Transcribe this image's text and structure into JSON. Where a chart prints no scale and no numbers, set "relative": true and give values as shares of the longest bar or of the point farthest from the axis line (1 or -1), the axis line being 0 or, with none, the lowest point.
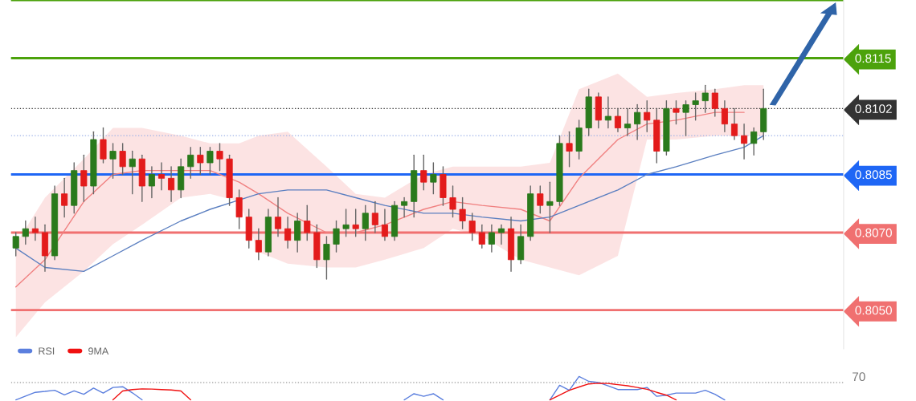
{
  "chart_data": [
    {
      "type": "candlestick",
      "categories": [
        null,
        null,
        null,
        null,
        null,
        null,
        null,
        null,
        null,
        null,
        null,
        null,
        null,
        null,
        null,
        null,
        null,
        null,
        null,
        null,
        null,
        null,
        null,
        null,
        null,
        null,
        null,
        null,
        null,
        null,
        null,
        null,
        null,
        null,
        null,
        null,
        null,
        null,
        null,
        null,
        null,
        null,
        null,
        null,
        null,
        null,
        null,
        null,
        null,
        null,
        null,
        null,
        null,
        null,
        null,
        null,
        null,
        null,
        null,
        null,
        null,
        null,
        null,
        null,
        null,
        null,
        null,
        null,
        null,
        null,
        null,
        null,
        null,
        null,
        null,
        null,
        null,
        null
      ],
      "ohlc": [
        [
          0.8066,
          0.807,
          0.8064,
          0.8069
        ],
        [
          0.8069,
          0.8073,
          0.8067,
          0.8071
        ],
        [
          0.8071,
          0.8074,
          0.8068,
          0.807
        ],
        [
          0.807,
          0.8072,
          0.806,
          0.8064
        ],
        [
          0.8064,
          0.8082,
          0.8063,
          0.808
        ],
        [
          0.808,
          0.8084,
          0.8074,
          0.8077
        ],
        [
          0.8077,
          0.8088,
          0.8075,
          0.8086
        ],
        [
          0.8086,
          0.809,
          0.8078,
          0.8082
        ],
        [
          0.8082,
          0.8096,
          0.808,
          0.8094
        ],
        [
          0.8094,
          0.8097,
          0.8088,
          0.8089
        ],
        [
          0.8089,
          0.8093,
          0.8084,
          0.8091
        ],
        [
          0.8091,
          0.8093,
          0.8085,
          0.8087
        ],
        [
          0.8087,
          0.8091,
          0.808,
          0.8089
        ],
        [
          0.8089,
          0.809,
          0.8078,
          0.8082
        ],
        [
          0.8082,
          0.8087,
          0.8079,
          0.8085
        ],
        [
          0.8085,
          0.8088,
          0.8081,
          0.8084
        ],
        [
          0.8084,
          0.8087,
          0.8078,
          0.8081
        ],
        [
          0.8081,
          0.8089,
          0.8079,
          0.8087
        ],
        [
          0.8087,
          0.8092,
          0.8084,
          0.809
        ],
        [
          0.809,
          0.8092,
          0.8085,
          0.8088
        ],
        [
          0.8088,
          0.8092,
          0.8085,
          0.8091
        ],
        [
          0.8091,
          0.8093,
          0.8086,
          0.8089
        ],
        [
          0.8089,
          0.809,
          0.8077,
          0.8079
        ],
        [
          0.8079,
          0.8081,
          0.8071,
          0.8074
        ],
        [
          0.8074,
          0.8076,
          0.8066,
          0.8068
        ],
        [
          0.8068,
          0.8071,
          0.8063,
          0.8065
        ],
        [
          0.8065,
          0.8076,
          0.8064,
          0.8074
        ],
        [
          0.8074,
          0.8079,
          0.8069,
          0.8071
        ],
        [
          0.8071,
          0.8074,
          0.8066,
          0.8068
        ],
        [
          0.8068,
          0.8075,
          0.8065,
          0.8073
        ],
        [
          0.8073,
          0.8077,
          0.8068,
          0.807
        ],
        [
          0.807,
          0.8072,
          0.8061,
          0.8063
        ],
        [
          0.8063,
          0.8069,
          0.8058,
          0.8067
        ],
        [
          0.8067,
          0.8073,
          0.8065,
          0.8071
        ],
        [
          0.8071,
          0.8076,
          0.8069,
          0.8072
        ],
        [
          0.8072,
          0.8076,
          0.8069,
          0.8071
        ],
        [
          0.8071,
          0.8077,
          0.8068,
          0.8075
        ],
        [
          0.8075,
          0.8078,
          0.807,
          0.8072
        ],
        [
          0.8072,
          0.8076,
          0.8068,
          0.8069
        ],
        [
          0.8069,
          0.8078,
          0.8068,
          0.8077
        ],
        [
          0.8077,
          0.8079,
          0.8074,
          0.8078
        ],
        [
          0.8078,
          0.809,
          0.8074,
          0.8086
        ],
        [
          0.8086,
          0.809,
          0.8081,
          0.8083
        ],
        [
          0.8083,
          0.8088,
          0.808,
          0.8085
        ],
        [
          0.8085,
          0.8087,
          0.8077,
          0.8079
        ],
        [
          0.8079,
          0.8082,
          0.8074,
          0.8076
        ],
        [
          0.8076,
          0.8079,
          0.8071,
          0.8073
        ],
        [
          0.8073,
          0.8075,
          0.8068,
          0.807
        ],
        [
          0.807,
          0.8072,
          0.8066,
          0.8067
        ],
        [
          0.8067,
          0.8072,
          0.8065,
          0.807
        ],
        [
          0.807,
          0.8072,
          0.8067,
          0.8071
        ],
        [
          0.8071,
          0.8074,
          0.806,
          0.8063
        ],
        [
          0.8063,
          0.8072,
          0.8062,
          0.8069
        ],
        [
          0.8069,
          0.8082,
          0.8068,
          0.808
        ],
        [
          0.808,
          0.8082,
          0.8075,
          0.8077
        ],
        [
          0.8077,
          0.8083,
          0.807,
          0.8078
        ],
        [
          0.8078,
          0.8095,
          0.8077,
          0.8093
        ],
        [
          0.8093,
          0.8096,
          0.8087,
          0.8091
        ],
        [
          0.8091,
          0.8099,
          0.8089,
          0.8097
        ],
        [
          0.8097,
          0.8107,
          0.8095,
          0.8105
        ],
        [
          0.8105,
          0.8106,
          0.8097,
          0.8099
        ],
        [
          0.8099,
          0.8105,
          0.8097,
          0.81
        ],
        [
          0.81,
          0.8102,
          0.8096,
          0.8097
        ],
        [
          0.8097,
          0.8102,
          0.8095,
          0.8098
        ],
        [
          0.8098,
          0.8103,
          0.8094,
          0.8101
        ],
        [
          0.8101,
          0.8104,
          0.8096,
          0.8099
        ],
        [
          0.8099,
          0.8102,
          0.8088,
          0.8091
        ],
        [
          0.8091,
          0.8104,
          0.809,
          0.8102
        ],
        [
          0.8102,
          0.8104,
          0.8098,
          0.8101
        ],
        [
          0.8101,
          0.8104,
          0.8095,
          0.8103
        ],
        [
          0.8103,
          0.8106,
          0.8099,
          0.8104
        ],
        [
          0.8104,
          0.8108,
          0.8101,
          0.8106
        ],
        [
          0.8106,
          0.8107,
          0.81,
          0.8102
        ],
        [
          0.8102,
          0.8104,
          0.8096,
          0.8098
        ],
        [
          0.8098,
          0.8102,
          0.8094,
          0.8095
        ],
        [
          0.8095,
          0.8098,
          0.8089,
          0.8093
        ],
        [
          0.8093,
          0.8097,
          0.809,
          0.8096
        ],
        [
          0.8096,
          0.8107,
          0.8094,
          0.8102
        ]
      ],
      "colors": [
        "#2a7a1c",
        "#2a7a1c",
        "#e31b1b",
        "#e31b1b",
        "#2a7a1c",
        "#e31b1b",
        "#2a7a1c",
        "#e31b1b",
        "#2a7a1c",
        "#e31b1b",
        "#2a7a1c",
        "#e31b1b",
        "#2a7a1c",
        "#e31b1b",
        "#2a7a1c",
        "#e31b1b",
        "#e31b1b",
        "#2a7a1c",
        "#2a7a1c",
        "#e31b1b",
        "#2a7a1c",
        "#e31b1b",
        "#e31b1b",
        "#e31b1b",
        "#e31b1b",
        "#e31b1b",
        "#2a7a1c",
        "#e31b1b",
        "#e31b1b",
        "#2a7a1c",
        "#e31b1b",
        "#e31b1b",
        "#2a7a1c",
        "#2a7a1c",
        "#2a7a1c",
        "#e31b1b",
        "#2a7a1c",
        "#e31b1b",
        "#e31b1b",
        "#2a7a1c",
        "#2a7a1c",
        "#2a7a1c",
        "#e31b1b",
        "#2a7a1c",
        "#e31b1b",
        "#e31b1b",
        "#e31b1b",
        "#e31b1b",
        "#e31b1b",
        "#2a7a1c",
        "#2a7a1c",
        "#e31b1b",
        "#2a7a1c",
        "#2a7a1c",
        "#e31b1b",
        "#2a7a1c",
        "#2a7a1c",
        "#e31b1b",
        "#2a7a1c",
        "#2a7a1c",
        "#e31b1b",
        "#2a7a1c",
        "#e31b1b",
        "#2a7a1c",
        "#2a7a1c",
        "#e31b1b",
        "#e31b1b",
        "#2a7a1c",
        "#e31b1b",
        "#2a7a1c",
        "#2a7a1c",
        "#2a7a1c",
        "#e31b1b",
        "#e31b1b",
        "#e31b1b",
        "#e31b1b",
        "#2a7a1c",
        "#2a7a1c"
      ],
      "series": [
        {
          "type": "line",
          "color": "#f08080",
          "values": [
            0.8056,
            null,
            null,
            0.8063,
            null,
            null,
            null,
            0.8078,
            null,
            null,
            0.8085,
            null,
            null,
            0.8086,
            null,
            null,
            null,
            null,
            null,
            null,
            0.8086,
            null,
            null,
            0.8083,
            null,
            0.808,
            null,
            null,
            0.8075,
            null,
            null,
            null,
            0.807,
            null,
            null,
            0.807,
            null,
            null,
            0.8072,
            null,
            null,
            null,
            0.8076,
            null,
            null,
            0.8078,
            null,
            null,
            0.8077,
            null,
            null,
            null,
            0.8076,
            null,
            null,
            0.8073,
            null,
            null,
            0.8084,
            null,
            null,
            null,
            0.8094,
            null,
            null,
            0.8098,
            null,
            null,
            0.8099,
            null,
            null,
            null,
            0.8101,
            null,
            null,
            0.8101,
            null,
            null
          ],
          "upper": [
            0.8067,
            null,
            null,
            0.8079,
            null,
            null,
            null,
            0.8089,
            null,
            null,
            0.8097,
            null,
            null,
            0.8097,
            null,
            null,
            null,
            0.8095,
            null,
            null,
            0.8093,
            null,
            null,
            0.8093,
            null,
            0.8095,
            null,
            null,
            0.8096,
            null,
            null,
            null,
            0.8087,
            null,
            null,
            0.808,
            null,
            null,
            0.8079,
            null,
            null,
            null,
            0.8085,
            null,
            null,
            0.8087,
            null,
            null,
            0.8087,
            null,
            null,
            null,
            0.8087,
            null,
            null,
            0.8088,
            null,
            null,
            0.8107,
            null,
            null,
            null,
            0.8111,
            null,
            null,
            0.8105,
            null,
            null,
            0.8106,
            null,
            null,
            null,
            0.8107,
            null,
            null,
            0.8108,
            null,
            0.8108
          ],
          "lower": [
            0.8043,
            null,
            null,
            0.8052,
            null,
            null,
            null,
            0.806,
            null,
            null,
            0.8067,
            null,
            null,
            0.8072,
            null,
            null,
            null,
            0.8079,
            null,
            null,
            0.808,
            null,
            null,
            0.8078,
            null,
            0.8065,
            null,
            null,
            0.8062,
            null,
            null,
            null,
            0.8061,
            null,
            null,
            0.8061,
            null,
            null,
            0.8063,
            null,
            null,
            null,
            0.8066,
            null,
            null,
            0.8071,
            null,
            null,
            0.8069,
            null,
            null,
            null,
            0.8063,
            null,
            null,
            0.8061,
            null,
            null,
            0.8059,
            null,
            null,
            null,
            0.8064,
            null,
            null,
            0.8094,
            null,
            null,
            0.8094,
            null,
            null,
            null,
            0.8095,
            null,
            null,
            0.8095,
            null,
            0.8095
          ]
        },
        {
          "type": "line",
          "color": "#5b7fc0",
          "values": [
            0.8066,
            null,
            null,
            0.8061,
            null,
            null,
            null,
            0.806,
            null,
            null,
            0.8064,
            null,
            null,
            0.8068,
            null,
            null,
            null,
            0.8073,
            null,
            null,
            0.8076,
            null,
            null,
            null,
            null,
            0.808,
            null,
            null,
            0.8081,
            null,
            null,
            null,
            0.8081,
            null,
            null,
            0.8079,
            null,
            null,
            0.8077,
            null,
            null,
            null,
            0.8075,
            null,
            null,
            0.8075,
            null,
            null,
            0.8074,
            null,
            null,
            null,
            0.8073,
            null,
            null,
            0.8074,
            null,
            null,
            0.8077,
            null,
            null,
            null,
            0.8081,
            null,
            null,
            0.8085,
            null,
            null,
            0.8087,
            null,
            null,
            null,
            0.809,
            null,
            null,
            0.8092,
            null,
            0.8095
          ]
        }
      ],
      "ref_lines": [
        {
          "axis": "y",
          "value": 0.813,
          "color": "#4ca20c"
        },
        {
          "axis": "y",
          "value": 0.8115,
          "color": "#4ca20c"
        },
        {
          "axis": "y",
          "value": 0.8102,
          "color": "#333333",
          "line_style": "dotted"
        },
        {
          "axis": "y",
          "value": 0.8095,
          "color": "#9fb3e8",
          "line_style": "dotted"
        },
        {
          "axis": "y",
          "value": 0.8085,
          "color": "#1e66f5"
        },
        {
          "axis": "y",
          "value": 0.807,
          "color": "#f07070"
        },
        {
          "axis": "y",
          "value": 0.805,
          "color": "#f07070"
        }
      ],
      "ylim": [
        0.804,
        0.813
      ],
      "yticks": [
        {
          "value": 0.805,
          "label": "0.8050"
        },
        {
          "value": 0.807,
          "label": "0.8070"
        },
        {
          "value": 0.8085,
          "label": "0.8085"
        },
        {
          "value": 0.8102,
          "label": "0.8102"
        },
        {
          "value": 0.8115,
          "label": "0.8115"
        }
      ]
    },
    {
      "type": "line",
      "categories": [
        null,
        null,
        null,
        null,
        null,
        null,
        null,
        null,
        null,
        null,
        null,
        null,
        null,
        null,
        null,
        null,
        null,
        null,
        null,
        null,
        null,
        null,
        null,
        null,
        null,
        null,
        null,
        null,
        null,
        null,
        null,
        null,
        null,
        null,
        null,
        null,
        null,
        null,
        null,
        null,
        null,
        null,
        null,
        null,
        null,
        null,
        null,
        null,
        null,
        null,
        null,
        null,
        null,
        null,
        null,
        null,
        null,
        null,
        null,
        null,
        null,
        null,
        null,
        null,
        null,
        null,
        null,
        null,
        null,
        null,
        null,
        null,
        null,
        null,
        null,
        null,
        null,
        null
      ],
      "series": [
        {
          "name": "RSI",
          "color": "#5b7fde",
          "values": [
            0,
            0.16,
            0.32,
            0.36,
            0.41,
            0.21,
            0.38,
            0.24,
            0.5,
            0.29,
            0.53,
            0.56,
            0.3,
            0,
            null,
            null,
            null,
            null,
            null,
            null,
            null,
            null,
            null,
            null,
            null,
            null,
            null,
            null,
            null,
            null,
            null,
            null,
            null,
            null,
            null,
            null,
            null,
            null,
            null,
            null,
            0,
            0.26,
            0.15,
            0.26,
            0,
            null,
            null,
            null,
            null,
            null,
            null,
            null,
            null,
            null,
            null,
            0,
            0.62,
            0.41,
            1,
            0.79,
            0.74,
            0.6,
            0.44,
            0.44,
            0.44,
            0.53,
            0.15,
            0.2,
            0.29,
            0.29,
            0.29,
            0.41,
            0.24,
            0,
            null,
            null,
            null,
            null
          ]
        },
        {
          "name": "9MA",
          "color": "#f01010",
          "values": [
            null,
            null,
            null,
            null,
            null,
            null,
            null,
            null,
            null,
            null,
            0,
            0.38,
            0.44,
            0.47,
            0.46,
            0.44,
            0.42,
            0.38,
            0,
            null,
            null,
            null,
            null,
            null,
            null,
            null,
            null,
            null,
            null,
            null,
            null,
            null,
            null,
            null,
            null,
            null,
            null,
            null,
            null,
            null,
            null,
            null,
            null,
            null,
            null,
            null,
            null,
            null,
            null,
            null,
            null,
            null,
            null,
            null,
            null,
            0,
            0.2,
            0.41,
            0.55,
            0.68,
            0.71,
            0.7,
            0.65,
            0.6,
            0.53,
            0.45,
            0.32,
            0.2,
            0,
            null,
            null,
            null,
            null,
            null,
            null,
            null,
            null,
            null
          ]
        }
      ],
      "relative": true,
      "ref_lines": [
        {
          "axis": "y",
          "value": 0.74,
          "color": "#aaaaaa",
          "line_style": "dotted"
        }
      ],
      "annotations": [
        "70"
      ],
      "legend": "top left"
    }
  ]
}
